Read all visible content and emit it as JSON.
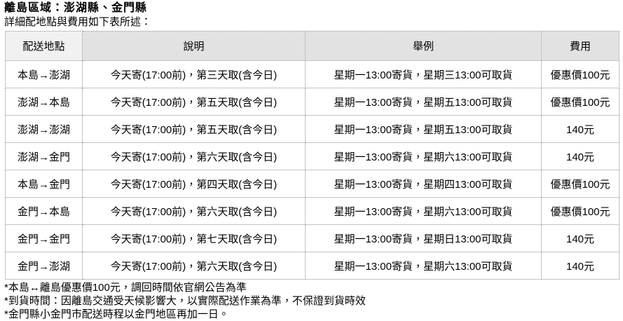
{
  "page": {
    "title": "離島區域：澎湖縣、金門縣",
    "subtitle": "詳細配地點與費用如下表所述："
  },
  "table": {
    "headers": [
      "配送地點",
      "說明",
      "舉例",
      "費用"
    ],
    "rows": [
      {
        "route": "本島→澎湖",
        "desc": "今天寄(17:00前)，第三天取(含今日)",
        "example": "星期一13:00寄貨，星期三13:00可取貨",
        "fee": "優惠價100元"
      },
      {
        "route": "澎湖→本島",
        "desc": "今天寄(17:00前)，第五天取(含今日)",
        "example": "星期一13:00寄貨，星期五13:00可取貨",
        "fee": "優惠價100元"
      },
      {
        "route": "澎湖→澎湖",
        "desc": "今天寄(17:00前)，第五天取(含今日)",
        "example": "星期一13:00寄貨，星期五13:00可取貨",
        "fee": "140元"
      },
      {
        "route": "澎湖→金門",
        "desc": "今天寄(17:00前)，第六天取(含今日)",
        "example": "星期一13:00寄貨，星期六13:00可取貨",
        "fee": "140元"
      },
      {
        "route": "本島→金門",
        "desc": "今天寄(17:00前)，第四天取(含今日)",
        "example": "星期一13:00寄貨，星期四13:00可取貨",
        "fee": "優惠價100元"
      },
      {
        "route": "金門→本島",
        "desc": "今天寄(17:00前)，第六天取(含今日)",
        "example": "星期一13:00寄貨，星期六13:00可取貨",
        "fee": "優惠價100元"
      },
      {
        "route": "金門→金門",
        "desc": "今天寄(17:00前)，第七天取(含今日)",
        "example": "星期一13:00寄貨，星期日13:00可取貨",
        "fee": "140元"
      },
      {
        "route": "金門→澎湖",
        "desc": "今天寄(17:00前)，第六天取(含今日)",
        "example": "星期一13:00寄貨，星期六13:00可取貨",
        "fee": "140元"
      }
    ]
  },
  "footnotes": [
    "*本島↔離島優惠價100元，調回時間依官網公告為準",
    "*到貨時間：因離島交通受天候影響大，以實際配送作業為準，不保證到貨時效",
    "*金門縣小金門市配送時程以金門地區再加一日。"
  ],
  "colors": {
    "header_bg": "#e2e2e2",
    "header_first_bg": "#f1f1f1",
    "border": "#8a8a8a",
    "text": "#000000",
    "background": "#ffffff"
  }
}
